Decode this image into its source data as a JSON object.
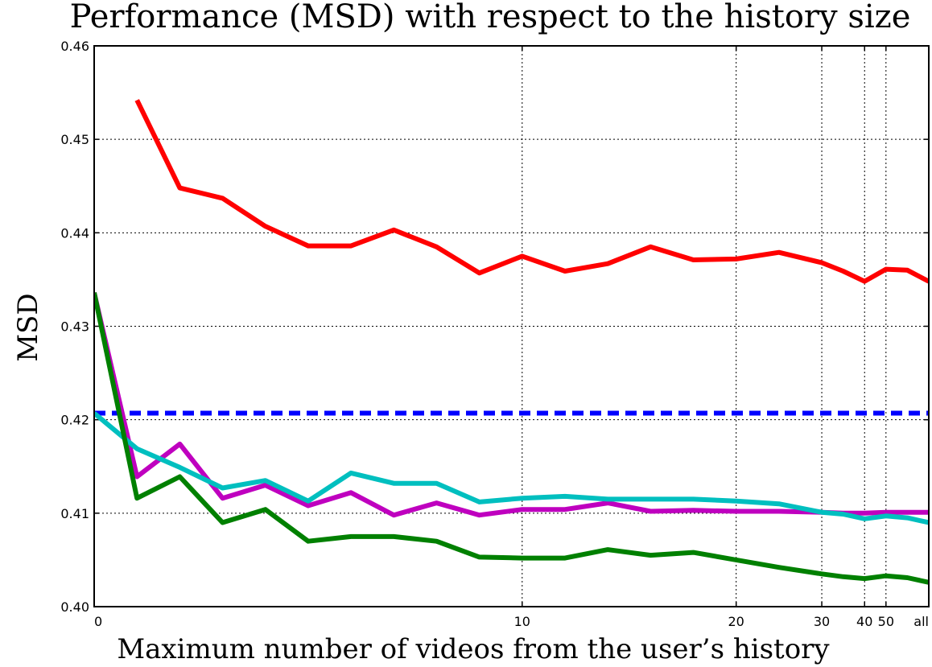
{
  "chart_data": {
    "type": "line",
    "title": "Performance (MSD) with respect to the history size",
    "xlabel": "Maximum number of videos from the user’s history",
    "ylabel": "MSD",
    "ylim": [
      0.4,
      0.46
    ],
    "grid": true,
    "yticks": [
      {
        "value": 0.4,
        "label": "0.40"
      },
      {
        "value": 0.41,
        "label": "0.41"
      },
      {
        "value": 0.42,
        "label": "0.42"
      },
      {
        "value": 0.43,
        "label": "0.43"
      },
      {
        "value": 0.44,
        "label": "0.44"
      },
      {
        "value": 0.45,
        "label": "0.45"
      },
      {
        "value": 0.46,
        "label": "0.46"
      }
    ],
    "xticks": [
      {
        "index": 0,
        "label": "0"
      },
      {
        "index": 10,
        "label": "10"
      },
      {
        "index": 15,
        "label": "20"
      },
      {
        "index": 17,
        "label": "30"
      },
      {
        "index": 18,
        "label": "40"
      },
      {
        "index": 18.5,
        "label": "50"
      },
      {
        "index": 19.5,
        "label": "all"
      }
    ],
    "x_index_range": [
      0,
      19.5
    ],
    "x_index": [
      0,
      1,
      2,
      3,
      4,
      5,
      6,
      7,
      8,
      9,
      10,
      11,
      12,
      13,
      14,
      15,
      16,
      17,
      17.5,
      18,
      18.5,
      19,
      19.5
    ],
    "series": [
      {
        "color": "#ff0000",
        "dashed": false,
        "values": [
          null,
          0.4542,
          0.4448,
          0.4437,
          0.4407,
          0.4386,
          0.4386,
          0.4403,
          0.4385,
          0.4357,
          0.4375,
          0.4359,
          0.4367,
          0.4385,
          0.4371,
          0.4372,
          0.4379,
          0.4368,
          0.4359,
          0.4348,
          0.4361,
          0.436,
          0.4348
        ]
      },
      {
        "color": "#0000ff",
        "dashed": true,
        "values": [
          0.4207,
          0.4207,
          0.4207,
          0.4207,
          0.4207,
          0.4207,
          0.4207,
          0.4207,
          0.4207,
          0.4207,
          0.4207,
          0.4207,
          0.4207,
          0.4207,
          0.4207,
          0.4207,
          0.4207,
          0.4207,
          0.4207,
          0.4207,
          0.4207,
          0.4207,
          0.4207
        ]
      },
      {
        "color": "#bf00bf",
        "dashed": false,
        "values": [
          0.4336,
          0.4139,
          0.4174,
          0.4116,
          0.413,
          0.4108,
          0.4122,
          0.4098,
          0.4111,
          0.4098,
          0.4104,
          0.4104,
          0.4111,
          0.4102,
          0.4103,
          0.4102,
          0.4102,
          0.4101,
          0.41,
          0.41,
          0.4101,
          0.4101,
          0.4101
        ]
      },
      {
        "color": "#00bfbf",
        "dashed": false,
        "values": [
          0.4207,
          0.4169,
          0.4149,
          0.4127,
          0.4135,
          0.4113,
          0.4143,
          0.4132,
          0.4132,
          0.4112,
          0.4116,
          0.4118,
          0.4115,
          0.4115,
          0.4115,
          0.4113,
          0.411,
          0.4101,
          0.4099,
          0.4094,
          0.4097,
          0.4095,
          0.409
        ]
      },
      {
        "color": "#008000",
        "dashed": false,
        "values": [
          0.4336,
          0.4116,
          0.4139,
          0.409,
          0.4104,
          0.407,
          0.4075,
          0.4075,
          0.407,
          0.4053,
          0.4052,
          0.4052,
          0.4061,
          0.4055,
          0.4058,
          0.405,
          0.4042,
          0.4035,
          0.4032,
          0.403,
          0.4033,
          0.4031,
          0.4026
        ]
      }
    ]
  }
}
